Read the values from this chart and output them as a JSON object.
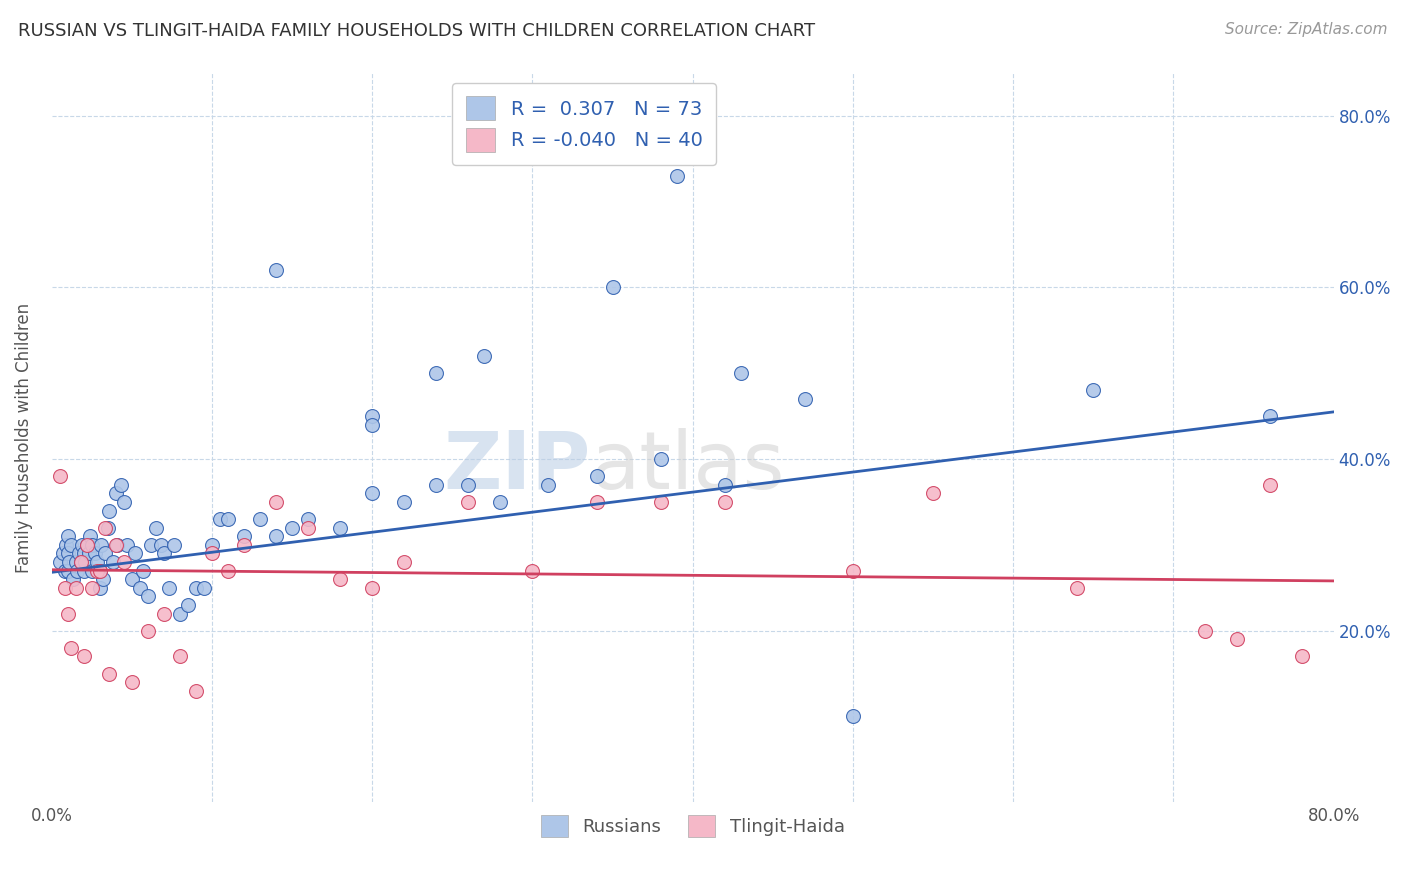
{
  "title": "RUSSIAN VS TLINGIT-HAIDA FAMILY HOUSEHOLDS WITH CHILDREN CORRELATION CHART",
  "source": "Source: ZipAtlas.com",
  "ylabel": "Family Households with Children",
  "russian_R": 0.307,
  "russian_N": 73,
  "tlingit_R": -0.04,
  "tlingit_N": 40,
  "xlim": [
    0.0,
    0.8
  ],
  "ylim": [
    0.0,
    0.85
  ],
  "russian_color": "#aec6e8",
  "russian_line_color": "#3060b0",
  "tlingit_color": "#f5b8c8",
  "tlingit_line_color": "#d04060",
  "legend_text_color": "#3060b0",
  "background_color": "#ffffff",
  "grid_color": "#c8d8e8",
  "russians_x": [
    0.005,
    0.007,
    0.008,
    0.009,
    0.01,
    0.01,
    0.01,
    0.011,
    0.012,
    0.013,
    0.015,
    0.016,
    0.017,
    0.018,
    0.019,
    0.02,
    0.02,
    0.021,
    0.022,
    0.023,
    0.024,
    0.025,
    0.025,
    0.027,
    0.028,
    0.03,
    0.03,
    0.031,
    0.032,
    0.033,
    0.035,
    0.036,
    0.038,
    0.04,
    0.041,
    0.043,
    0.045,
    0.047,
    0.05,
    0.052,
    0.055,
    0.057,
    0.06,
    0.062,
    0.065,
    0.068,
    0.07,
    0.073,
    0.076,
    0.08,
    0.085,
    0.09,
    0.095,
    0.1,
    0.105,
    0.11,
    0.12,
    0.13,
    0.14,
    0.15,
    0.16,
    0.18,
    0.2,
    0.22,
    0.24,
    0.26,
    0.28,
    0.31,
    0.34,
    0.38,
    0.42,
    0.65,
    0.76
  ],
  "russians_y": [
    0.28,
    0.29,
    0.27,
    0.3,
    0.27,
    0.29,
    0.31,
    0.28,
    0.3,
    0.26,
    0.28,
    0.27,
    0.29,
    0.28,
    0.3,
    0.27,
    0.29,
    0.28,
    0.3,
    0.29,
    0.31,
    0.27,
    0.3,
    0.29,
    0.28,
    0.25,
    0.27,
    0.3,
    0.26,
    0.29,
    0.32,
    0.34,
    0.28,
    0.36,
    0.3,
    0.37,
    0.35,
    0.3,
    0.26,
    0.29,
    0.25,
    0.27,
    0.24,
    0.3,
    0.32,
    0.3,
    0.29,
    0.25,
    0.3,
    0.22,
    0.23,
    0.25,
    0.25,
    0.3,
    0.33,
    0.33,
    0.31,
    0.33,
    0.31,
    0.32,
    0.33,
    0.32,
    0.36,
    0.35,
    0.37,
    0.37,
    0.35,
    0.37,
    0.38,
    0.4,
    0.37,
    0.48,
    0.45
  ],
  "russians_y_outliers": [
    0.73,
    0.62,
    0.6,
    0.52,
    0.5,
    0.5,
    0.47,
    0.45,
    0.44,
    0.1
  ],
  "russians_x_outliers": [
    0.39,
    0.14,
    0.35,
    0.27,
    0.43,
    0.24,
    0.47,
    0.2,
    0.2,
    0.5
  ],
  "tlingit_x": [
    0.005,
    0.008,
    0.01,
    0.012,
    0.015,
    0.018,
    0.02,
    0.022,
    0.025,
    0.028,
    0.03,
    0.033,
    0.036,
    0.04,
    0.045,
    0.05,
    0.06,
    0.07,
    0.08,
    0.09,
    0.1,
    0.11,
    0.12,
    0.14,
    0.16,
    0.18,
    0.2,
    0.22,
    0.26,
    0.3,
    0.34,
    0.38,
    0.42,
    0.5,
    0.55,
    0.64,
    0.72,
    0.74,
    0.76,
    0.78
  ],
  "tlingit_y": [
    0.38,
    0.25,
    0.22,
    0.18,
    0.25,
    0.28,
    0.17,
    0.3,
    0.25,
    0.27,
    0.27,
    0.32,
    0.15,
    0.3,
    0.28,
    0.14,
    0.2,
    0.22,
    0.17,
    0.13,
    0.29,
    0.27,
    0.3,
    0.35,
    0.32,
    0.26,
    0.25,
    0.28,
    0.35,
    0.27,
    0.35,
    0.35,
    0.35,
    0.27,
    0.36,
    0.25,
    0.2,
    0.19,
    0.37,
    0.17
  ]
}
